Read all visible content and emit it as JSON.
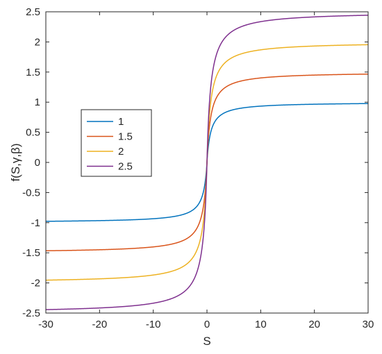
{
  "chart_data": {
    "type": "line",
    "title": "",
    "xlabel": "S",
    "ylabel": "f(S,γ,β)",
    "xlim": [
      -30,
      30
    ],
    "ylim": [
      -2.5,
      2.5
    ],
    "x_ticks": [
      -30,
      -20,
      -10,
      0,
      10,
      20,
      30
    ],
    "y_ticks": [
      -2.5,
      -2,
      -1.5,
      -1,
      -0.5,
      0,
      0.5,
      1,
      1.5,
      2,
      2.5
    ],
    "x_tick_labels": [
      "-30",
      "-20",
      "-10",
      "0",
      "10",
      "20",
      "30"
    ],
    "y_tick_labels": [
      "-2.5",
      "-2",
      "-1.5",
      "-1",
      "-0.5",
      "0",
      "0.5",
      "1",
      "1.5",
      "2",
      "2.5"
    ],
    "grid": false,
    "legend_position": "center-left",
    "curve_shape": "y = γ * S / (|S| + c), c = 0.7",
    "x_samples": [
      -30,
      -20,
      -10,
      -5,
      -3,
      -2,
      -1,
      -0.5,
      0,
      0.5,
      1,
      2,
      3,
      5,
      10,
      20,
      30
    ],
    "series": [
      {
        "name": "1",
        "color": "#0072BD",
        "values": [
          -0.977,
          -0.966,
          -0.935,
          -0.877,
          -0.811,
          -0.741,
          -0.588,
          -0.417,
          0,
          0.417,
          0.588,
          0.741,
          0.811,
          0.877,
          0.935,
          0.966,
          0.977
        ]
      },
      {
        "name": "1.5",
        "color": "#D95319",
        "values": [
          -1.466,
          -1.449,
          -1.402,
          -1.316,
          -1.216,
          -1.111,
          -0.882,
          -0.625,
          0,
          0.625,
          0.882,
          1.111,
          1.216,
          1.316,
          1.402,
          1.449,
          1.466
        ]
      },
      {
        "name": "2",
        "color": "#EDB120",
        "values": [
          -1.954,
          -1.932,
          -1.869,
          -1.754,
          -1.622,
          -1.481,
          -1.176,
          -0.833,
          0,
          0.833,
          1.176,
          1.481,
          1.622,
          1.754,
          1.869,
          1.932,
          1.954
        ]
      },
      {
        "name": "2.5",
        "color": "#7E2F8E",
        "values": [
          -2.443,
          -2.415,
          -2.336,
          -2.193,
          -2.027,
          -1.852,
          -1.471,
          -1.042,
          0,
          1.042,
          1.471,
          1.852,
          2.027,
          2.193,
          2.336,
          2.415,
          2.443
        ]
      }
    ]
  }
}
